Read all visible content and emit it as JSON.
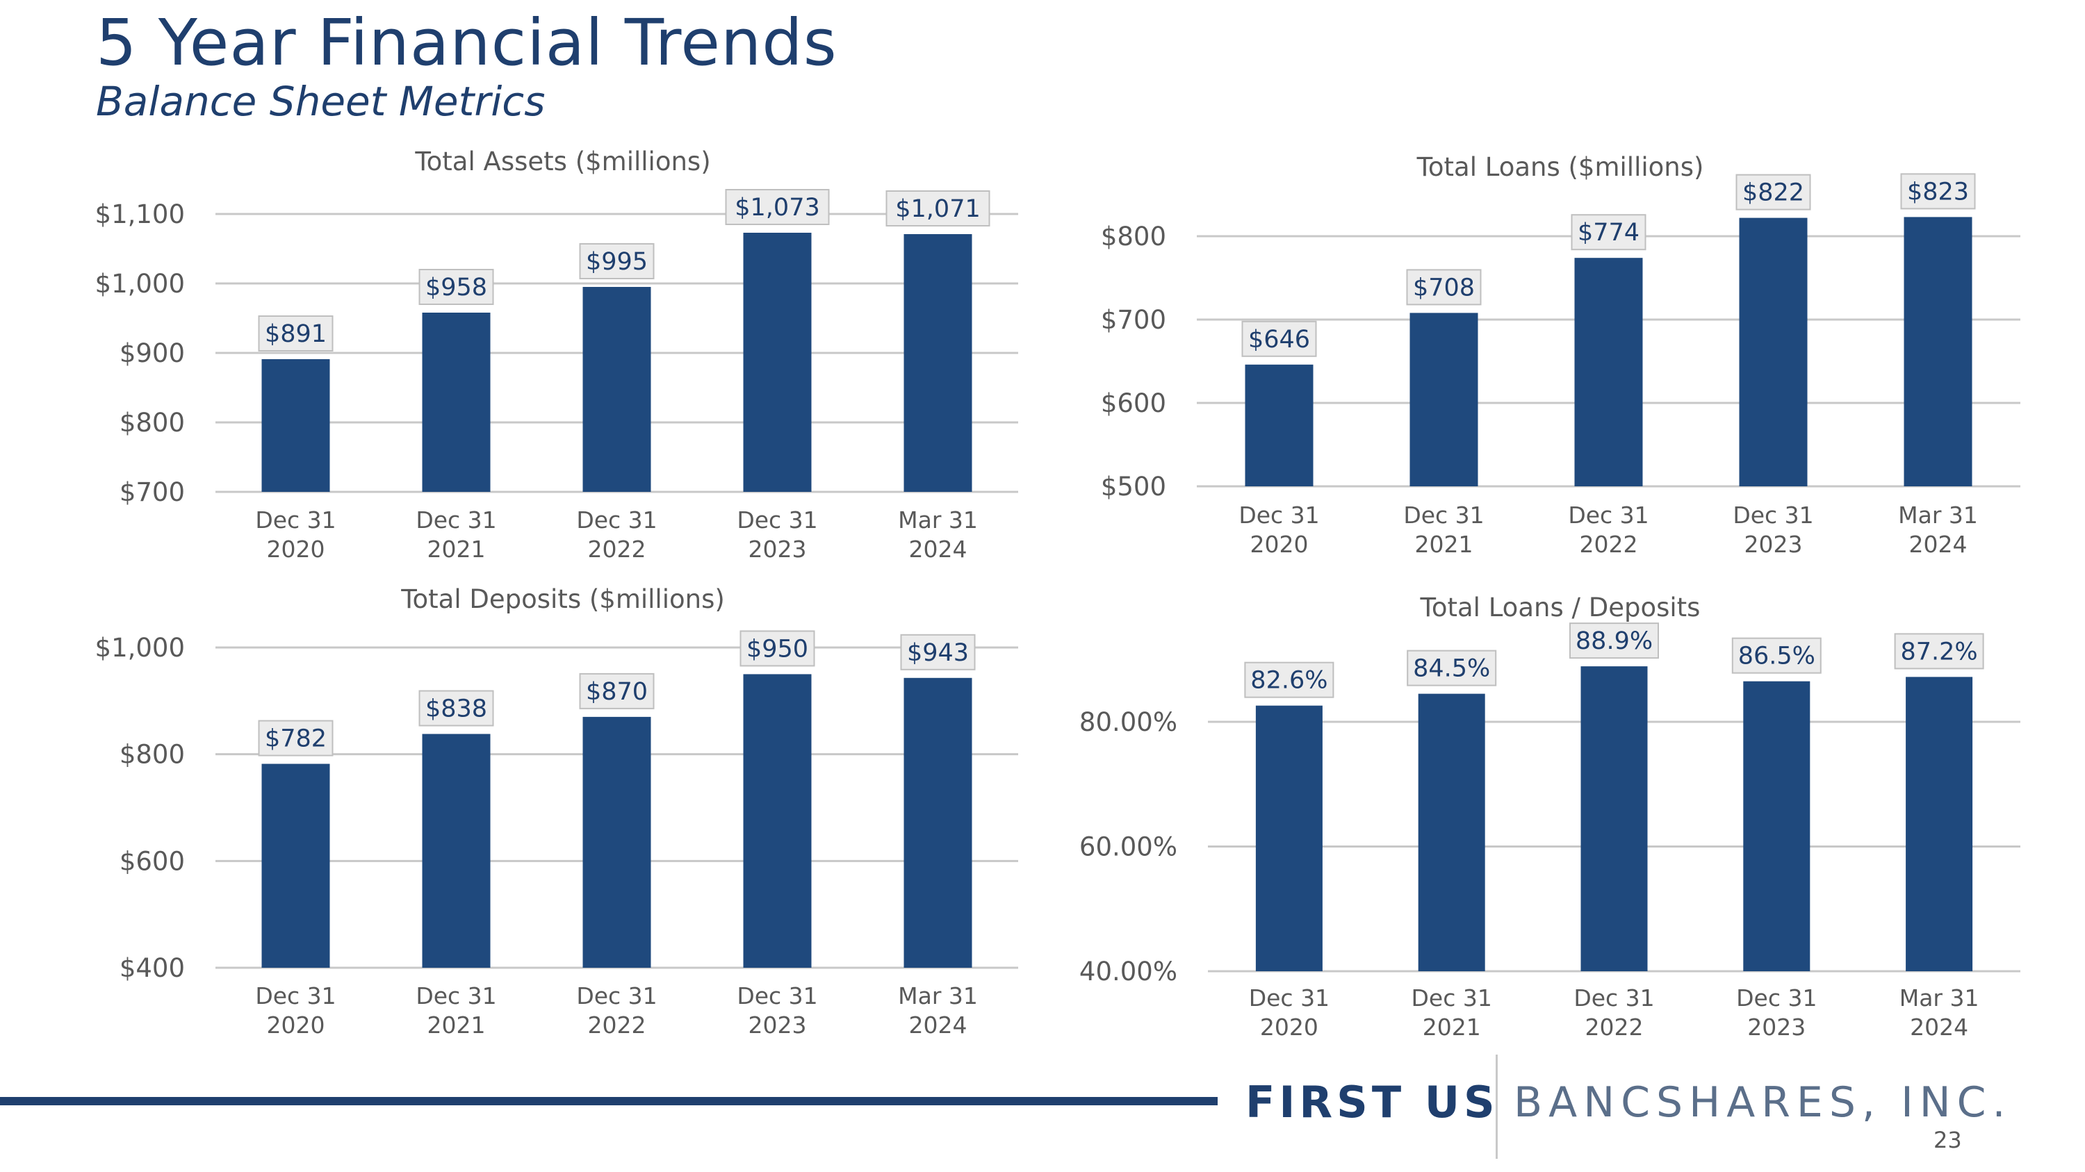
{
  "header": {
    "title": "5 Year Financial Trends",
    "subtitle": "Balance Sheet Metrics"
  },
  "colors": {
    "bar": "#1f497d",
    "grid": "#c8c8c8",
    "label_bg": "#ececec",
    "label_border": "#bfbfbf",
    "text": "#595959",
    "brand": "#1f3f6e"
  },
  "footer": {
    "logo_bold": "FIRST US",
    "logo_rest": "BANCSHARES, INC.",
    "page_number": "23"
  },
  "chart_data": [
    {
      "type": "bar",
      "title": "Total Assets ($millions)",
      "categories": [
        [
          "Dec 31",
          "2020"
        ],
        [
          "Dec 31",
          "2021"
        ],
        [
          "Dec 31",
          "2022"
        ],
        [
          "Dec 31",
          "2023"
        ],
        [
          "Mar 31",
          "2024"
        ]
      ],
      "values": [
        891,
        958,
        995,
        1073,
        1071
      ],
      "data_labels": [
        "$891",
        "$958",
        "$995",
        "$1,073",
        "$1,071"
      ],
      "ylim": [
        700,
        1100
      ],
      "yticks": [
        700,
        800,
        900,
        1000,
        1100
      ],
      "ytick_labels": [
        "$700",
        "$800",
        "$900",
        "$1,000",
        "$1,100"
      ],
      "grid": true
    },
    {
      "type": "bar",
      "title": "Total Loans ($millions)",
      "categories": [
        [
          "Dec 31",
          "2020"
        ],
        [
          "Dec 31",
          "2021"
        ],
        [
          "Dec 31",
          "2022"
        ],
        [
          "Dec 31",
          "2023"
        ],
        [
          "Mar 31",
          "2024"
        ]
      ],
      "values": [
        646,
        708,
        774,
        822,
        823
      ],
      "data_labels": [
        "$646",
        "$708",
        "$774",
        "$822",
        "$823"
      ],
      "ylim": [
        500,
        800
      ],
      "yticks": [
        500,
        600,
        700,
        800
      ],
      "ytick_labels": [
        "$500",
        "$600",
        "$700",
        "$800"
      ],
      "grid": true
    },
    {
      "type": "bar",
      "title": "Total Deposits ($millions)",
      "categories": [
        [
          "Dec 31",
          "2020"
        ],
        [
          "Dec 31",
          "2021"
        ],
        [
          "Dec 31",
          "2022"
        ],
        [
          "Dec 31",
          "2023"
        ],
        [
          "Mar 31",
          "2024"
        ]
      ],
      "values": [
        782,
        838,
        870,
        950,
        943
      ],
      "data_labels": [
        "$782",
        "$838",
        "$870",
        "$950",
        "$943"
      ],
      "ylim": [
        400,
        1000
      ],
      "yticks": [
        400,
        600,
        800,
        1000
      ],
      "ytick_labels": [
        "$400",
        "$600",
        "$800",
        "$1,000"
      ],
      "grid": true
    },
    {
      "type": "bar",
      "title": "Total Loans / Deposits",
      "categories": [
        [
          "Dec 31",
          "2020"
        ],
        [
          "Dec 31",
          "2021"
        ],
        [
          "Dec 31",
          "2022"
        ],
        [
          "Dec 31",
          "2023"
        ],
        [
          "Mar 31",
          "2024"
        ]
      ],
      "values": [
        82.6,
        84.5,
        88.9,
        86.5,
        87.2
      ],
      "data_labels": [
        "82.6%",
        "84.5%",
        "88.9%",
        "86.5%",
        "87.2%"
      ],
      "ylim": [
        40,
        80
      ],
      "yticks": [
        40,
        60,
        80
      ],
      "ytick_labels": [
        "40.00%",
        "60.00%",
        "80.00%"
      ],
      "grid": true
    }
  ]
}
